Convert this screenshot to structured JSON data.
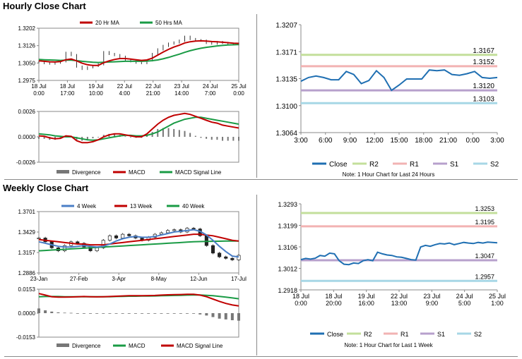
{
  "sections": {
    "hourly_title": "Hourly Close Chart",
    "weekly_title": "Weekly Close Chart"
  },
  "colors": {
    "close": "#1f6fb2",
    "ma_red": "#c00000",
    "ma_green": "#1a9b45",
    "ma_blue": "#4a7ec6",
    "divergence": "#777777",
    "r2": "#c3df9b",
    "r1": "#f2b3b3",
    "s1": "#b7a0cc",
    "s2": "#a7d7e6"
  },
  "chart_data": [
    {
      "id": "hourly_price",
      "type": "line",
      "legend": [
        "20 Hr MA",
        "50 Hrs MA"
      ],
      "y_ticks": [
        "1.3202",
        "1.3126",
        "1.3050",
        "1.2975"
      ],
      "ylim": [
        1.2975,
        1.3202
      ],
      "x_ticks": [
        [
          "18 Jul",
          "0:00"
        ],
        [
          "18 Jul",
          "17:00"
        ],
        [
          "19 Jul",
          "10:00"
        ],
        [
          "22 Jul",
          "4:00"
        ],
        [
          "22 Jul",
          "21:00"
        ],
        [
          "23 Jul",
          "14:00"
        ],
        [
          "24 Jul",
          "7:00"
        ],
        [
          "25 Jul",
          "0:00"
        ]
      ],
      "close": [
        1.3055,
        1.305,
        1.3048,
        1.3052,
        1.3058,
        1.3095,
        1.3085,
        1.3035,
        1.3025,
        1.3032,
        1.3038,
        1.3045,
        1.3098,
        1.309,
        1.3085,
        1.3078,
        1.3065,
        1.3058,
        1.3052,
        1.305,
        1.3062,
        1.309,
        1.311,
        1.3125,
        1.3135,
        1.314,
        1.3148,
        1.3165,
        1.3155,
        1.315,
        1.3148,
        1.3138,
        1.3135,
        1.3142,
        1.3138,
        1.3135,
        1.3132,
        1.3135
      ],
      "ma20": [
        1.306,
        1.3058,
        1.3056,
        1.3055,
        1.3057,
        1.3065,
        1.3068,
        1.306,
        1.305,
        1.3043,
        1.304,
        1.304,
        1.3052,
        1.306,
        1.3066,
        1.307,
        1.307,
        1.3068,
        1.3065,
        1.3062,
        1.3064,
        1.3072,
        1.3085,
        1.3098,
        1.311,
        1.312,
        1.3128,
        1.3138,
        1.3143,
        1.3146,
        1.3147,
        1.3146,
        1.3144,
        1.3143,
        1.3141,
        1.3139,
        1.3137,
        1.3136
      ],
      "ma50": [
        1.3066,
        1.3065,
        1.3064,
        1.3063,
        1.3062,
        1.3063,
        1.3063,
        1.3061,
        1.3058,
        1.3056,
        1.3054,
        1.3053,
        1.3054,
        1.3055,
        1.3056,
        1.3057,
        1.3058,
        1.3058,
        1.3058,
        1.3058,
        1.3059,
        1.3061,
        1.3064,
        1.3069,
        1.3075,
        1.3082,
        1.3089,
        1.3097,
        1.3104,
        1.311,
        1.3115,
        1.3119,
        1.3122,
        1.3125,
        1.3127,
        1.3129,
        1.313,
        1.3131
      ]
    },
    {
      "id": "hourly_macd",
      "type": "line",
      "legend": [
        "Divergence",
        "MACD",
        "MACD Signal Line"
      ],
      "y_ticks": [
        "0.0026",
        "0.0000",
        "-0.0026"
      ],
      "ylim": [
        -0.0026,
        0.0026
      ],
      "macd": [
        0.0001,
        5e-05,
        -0.0001,
        -0.0002,
        -0.00015,
        0.0001,
        5e-05,
        -0.0004,
        -0.0006,
        -0.0006,
        -0.0005,
        -0.0003,
        0.0,
        0.0002,
        0.0003,
        0.0003,
        0.0002,
        0.0001,
        0.0,
        0.0,
        0.0003,
        0.0008,
        0.0013,
        0.0017,
        0.002,
        0.0022,
        0.0023,
        0.0024,
        0.0023,
        0.0021,
        0.0019,
        0.0017,
        0.0015,
        0.0014,
        0.0012,
        0.0011,
        0.001,
        0.0009
      ],
      "signal": [
        0.0003,
        0.00025,
        0.0002,
        0.0001,
        5e-05,
        0.0,
        0.0,
        -0.0001,
        -0.0002,
        -0.0003,
        -0.00035,
        -0.0003,
        -0.0002,
        -0.0001,
        0.0,
        0.0001,
        0.00015,
        0.00015,
        0.0001,
        0.0001,
        0.00015,
        0.0003,
        0.0005,
        0.0008,
        0.0011,
        0.0014,
        0.0016,
        0.0018,
        0.0019,
        0.002,
        0.002,
        0.0019,
        0.0018,
        0.0017,
        0.0016,
        0.0015,
        0.0014,
        0.0013
      ],
      "divergence": [
        -0.0002,
        -0.0002,
        -0.0003,
        -0.0003,
        -0.0002,
        0.0001,
        5e-05,
        -0.0003,
        -0.0004,
        -0.0003,
        -0.00015,
        0.0,
        0.0002,
        0.0003,
        0.0003,
        0.0002,
        5e-05,
        -5e-05,
        -0.0001,
        -0.0001,
        0.00015,
        0.0005,
        0.0008,
        0.0009,
        0.0009,
        0.0008,
        0.0007,
        0.0006,
        0.0004,
        0.0001,
        -0.0001,
        -0.0002,
        -0.0003,
        -0.0003,
        -0.0004,
        -0.0004,
        -0.0004,
        -0.0004
      ]
    },
    {
      "id": "hourly_pivot",
      "type": "line",
      "y_ticks": [
        "1.3207",
        "1.3171",
        "1.3135",
        "1.3100",
        "1.3064"
      ],
      "ylim": [
        1.3064,
        1.3207
      ],
      "x_ticks": [
        "3:00",
        "6:00",
        "9:00",
        "12:00",
        "15:00",
        "18:00",
        "21:00",
        "0:00",
        "3:00"
      ],
      "levels": {
        "R2": 1.3167,
        "R1": 1.3152,
        "S1": 1.312,
        "S2": 1.3103
      },
      "level_labels": {
        "R2": "1.3167",
        "R1": "1.3152",
        "S1": "1.3120",
        "S2": "1.3103"
      },
      "close": [
        1.3132,
        1.3137,
        1.3139,
        1.3137,
        1.3134,
        1.3134,
        1.3145,
        1.3141,
        1.3129,
        1.3133,
        1.3146,
        1.3137,
        1.312,
        1.3127,
        1.3135,
        1.3135,
        1.3135,
        1.3147,
        1.3146,
        1.3147,
        1.3141,
        1.314,
        1.3142,
        1.3145,
        1.3137,
        1.3136,
        1.3137
      ],
      "legend": [
        "Close",
        "R2",
        "R1",
        "S1",
        "S2"
      ],
      "note": "Note: 1 Hour Chart for Last 24 Hours"
    },
    {
      "id": "weekly_price",
      "type": "line",
      "legend": [
        "4 Week",
        "13 Week",
        "40 Week"
      ],
      "y_ticks": [
        "1.3701",
        "1.3429",
        "1.3157",
        "1.2886"
      ],
      "ylim": [
        1.2886,
        1.3701
      ],
      "x_ticks": [
        "23-Jan",
        "27-Feb",
        "3-Apr",
        "8-May",
        "12-Jun",
        "17-Jul"
      ],
      "close": [
        1.335,
        1.33,
        1.322,
        1.318,
        1.325,
        1.33,
        1.328,
        1.323,
        1.318,
        1.322,
        1.332,
        1.338,
        1.335,
        1.34,
        1.338,
        1.335,
        1.332,
        1.336,
        1.34,
        1.342,
        1.345,
        1.346,
        1.343,
        1.348,
        1.347,
        1.338,
        1.325,
        1.315,
        1.31,
        1.308,
        1.306,
        1.312
      ],
      "ma4": [
        1.33,
        1.328,
        1.326,
        1.324,
        1.323,
        1.323,
        1.324,
        1.325,
        1.324,
        1.323,
        1.324,
        1.327,
        1.331,
        1.334,
        1.336,
        1.337,
        1.336,
        1.336,
        1.337,
        1.339,
        1.341,
        1.343,
        1.344,
        1.345,
        1.346,
        1.344,
        1.339,
        1.332,
        1.324,
        1.317,
        1.311,
        1.31
      ],
      "ma13": [
        1.333,
        1.332,
        1.331,
        1.33,
        1.329,
        1.328,
        1.327,
        1.327,
        1.326,
        1.326,
        1.326,
        1.327,
        1.328,
        1.329,
        1.33,
        1.331,
        1.332,
        1.333,
        1.334,
        1.335,
        1.336,
        1.337,
        1.338,
        1.339,
        1.34,
        1.34,
        1.339,
        1.338,
        1.336,
        1.334,
        1.332,
        1.331
      ],
      "ma40": [
        1.318,
        1.3185,
        1.319,
        1.3195,
        1.32,
        1.3205,
        1.321,
        1.3215,
        1.322,
        1.3225,
        1.323,
        1.3235,
        1.324,
        1.3245,
        1.325,
        1.3255,
        1.326,
        1.3265,
        1.327,
        1.3275,
        1.328,
        1.3285,
        1.329,
        1.3295,
        1.33,
        1.3303,
        1.3305,
        1.3307,
        1.3308,
        1.3309,
        1.331,
        1.331
      ]
    },
    {
      "id": "weekly_macd",
      "type": "line",
      "legend": [
        "Divergence",
        "MACD",
        "MACD Signal Line"
      ],
      "y_ticks": [
        "0.0153",
        "0.0000",
        "-0.0153"
      ],
      "ylim": [
        -0.0153,
        0.0153
      ],
      "macd": [
        0.0125,
        0.0115,
        0.0105,
        0.0102,
        0.0102,
        0.0103,
        0.0105,
        0.0106,
        0.0105,
        0.0104,
        0.0105,
        0.0106,
        0.0108,
        0.011,
        0.0111,
        0.0111,
        0.0111,
        0.0112,
        0.0113,
        0.0115,
        0.0117,
        0.0118,
        0.0119,
        0.012,
        0.012,
        0.0115,
        0.0105,
        0.009,
        0.0075,
        0.0062,
        0.0052,
        0.0046
      ],
      "signal": [
        0.0105,
        0.0106,
        0.0106,
        0.0106,
        0.0105,
        0.0105,
        0.0105,
        0.0105,
        0.0105,
        0.0105,
        0.0105,
        0.0105,
        0.0106,
        0.0107,
        0.0108,
        0.0108,
        0.0109,
        0.0109,
        0.011,
        0.0111,
        0.0112,
        0.0113,
        0.0114,
        0.0115,
        0.0116,
        0.0116,
        0.0114,
        0.0111,
        0.0107,
        0.0102,
        0.0097,
        0.0092
      ],
      "divergence": [
        0.003,
        0.0018,
        0.001,
        0.0005,
        0.0003,
        0.0002,
        0.0,
        0.0,
        0.0,
        0.0,
        0.0,
        0.0,
        0.0,
        0.0,
        0.0,
        0.0,
        0.0,
        0.0,
        0.0,
        0.0,
        0.0,
        0.0,
        0.0,
        0.0,
        -0.0003,
        -0.0008,
        -0.0015,
        -0.0025,
        -0.0035,
        -0.004,
        -0.0045,
        -0.0048
      ]
    },
    {
      "id": "weekly_pivot",
      "type": "line",
      "y_ticks": [
        "1.3293",
        "1.3199",
        "1.3106",
        "1.3012",
        "1.2918"
      ],
      "ylim": [
        1.2918,
        1.3293
      ],
      "x_ticks": [
        [
          "18 Jul",
          "0:00"
        ],
        [
          "18 Jul",
          "20:00"
        ],
        [
          "19 Jul",
          "16:00"
        ],
        [
          "22 Jul",
          "13:00"
        ],
        [
          "23 Jul",
          "9:00"
        ],
        [
          "24 Jul",
          "5:00"
        ],
        [
          "25 Jul",
          "1:00"
        ]
      ],
      "levels": {
        "R2": 1.3253,
        "R1": 1.3195,
        "S1": 1.3047,
        "S2": 1.2957
      },
      "level_labels": {
        "R2": "1.3253",
        "R1": "1.3195",
        "S1": "1.3047",
        "S2": "1.2957"
      },
      "close": [
        1.305,
        1.3055,
        1.3052,
        1.3056,
        1.3068,
        1.3065,
        1.3078,
        1.3075,
        1.3045,
        1.303,
        1.3028,
        1.3035,
        1.3033,
        1.3045,
        1.305,
        1.3045,
        1.3082,
        1.3075,
        1.307,
        1.3068,
        1.3062,
        1.306,
        1.3055,
        1.305,
        1.3048,
        1.3105,
        1.3112,
        1.3108,
        1.3115,
        1.312,
        1.3118,
        1.3122,
        1.3115,
        1.312,
        1.3125,
        1.3122,
        1.312,
        1.3125,
        1.3122,
        1.3126,
        1.3125,
        1.3123
      ],
      "legend": [
        "Close",
        "R2",
        "R1",
        "S1",
        "S2"
      ],
      "note": "Note: 1 Hour Chart for Last 1 Week"
    }
  ]
}
